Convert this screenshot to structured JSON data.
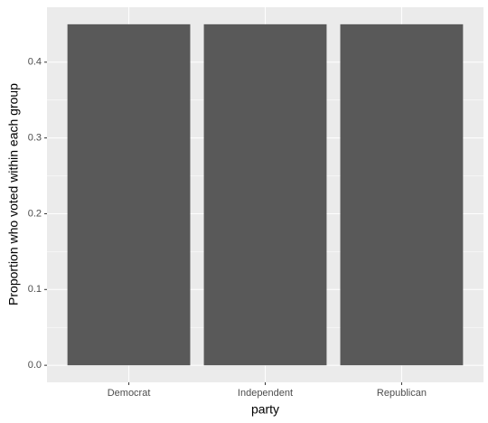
{
  "chart_data": {
    "type": "bar",
    "categories": [
      "Democrat",
      "Independent",
      "Republican"
    ],
    "values": [
      0.45,
      0.45,
      0.45
    ],
    "color": "#595959",
    "x_label": "party",
    "y_label": "Proportion who voted within each group",
    "ylim": [
      -0.0225,
      0.4725
    ],
    "yticks": [
      {
        "value": 0,
        "label": "0.0"
      },
      0.1,
      0.2,
      0.3,
      0.4
    ],
    "grid": true
  }
}
